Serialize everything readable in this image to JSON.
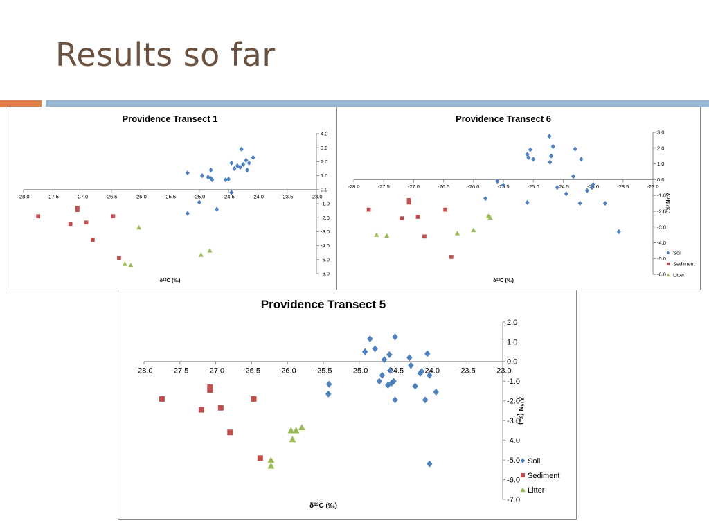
{
  "slide": {
    "title": "Results so far"
  },
  "colors": {
    "soil": "#4f81bd",
    "sediment": "#c0504d",
    "litter": "#9bbb59",
    "title": "#6b5240",
    "bar_orange": "#dd8047",
    "bar_blue": "#94b6d2"
  },
  "chart_data": [
    {
      "type": "scatter",
      "title": "Providence Transect 1",
      "xlabel": "δ13C (‰)",
      "ylabel": "",
      "xlim": [
        -28.0,
        -23.0
      ],
      "ylim": [
        -6.0,
        4.0
      ],
      "xticks": [
        "-28.0",
        "-27.5",
        "-27.0",
        "-26.5",
        "-26.0",
        "-25.5",
        "-25.0",
        "-24.5",
        "-24.0",
        "-23.5",
        "-23.0"
      ],
      "yticks": [
        "-6.0",
        "-5.0",
        "-4.0",
        "-3.0",
        "-2.0",
        "-1.0",
        "0.0",
        "1.0",
        "2.0",
        "3.0",
        "4.0"
      ],
      "legend": false,
      "series": [
        {
          "key": "soil",
          "marker": "diamond",
          "points": [
            [
              -25.2,
              1.2
            ],
            [
              -24.95,
              1.0
            ],
            [
              -24.85,
              0.9
            ],
            [
              -24.8,
              1.4
            ],
            [
              -24.78,
              0.7
            ],
            [
              -24.8,
              0.8
            ],
            [
              -24.55,
              0.7
            ],
            [
              -24.5,
              0.75
            ],
            [
              -24.45,
              1.9
            ],
            [
              -24.4,
              1.5
            ],
            [
              -24.35,
              1.7
            ],
            [
              -24.3,
              1.6
            ],
            [
              -24.28,
              2.9
            ],
            [
              -24.25,
              1.8
            ],
            [
              -24.2,
              2.1
            ],
            [
              -24.18,
              1.4
            ],
            [
              -24.15,
              1.9
            ],
            [
              -24.08,
              2.3
            ],
            [
              -25.0,
              -0.9
            ],
            [
              -24.45,
              -0.2
            ],
            [
              -24.7,
              -1.4
            ],
            [
              -25.2,
              -1.7
            ]
          ]
        },
        {
          "key": "sediment",
          "marker": "square",
          "points": [
            [
              -27.75,
              -1.9
            ],
            [
              -27.2,
              -2.45
            ],
            [
              -27.08,
              -1.3
            ],
            [
              -27.08,
              -1.45
            ],
            [
              -26.93,
              -2.35
            ],
            [
              -26.82,
              -3.6
            ],
            [
              -26.47,
              -1.9
            ],
            [
              -26.37,
              -4.9
            ]
          ]
        },
        {
          "key": "litter",
          "marker": "triangle",
          "points": [
            [
              -26.03,
              -2.7
            ],
            [
              -26.27,
              -5.3
            ],
            [
              -26.17,
              -5.4
            ],
            [
              -24.97,
              -4.65
            ],
            [
              -24.82,
              -4.35
            ]
          ]
        }
      ]
    },
    {
      "type": "scatter",
      "title": "Providence Transect 6",
      "xlabel": "δ13C (‰)",
      "ylabel": "δ15N (‰)",
      "xlim": [
        -28.0,
        -23.0
      ],
      "ylim": [
        -6.0,
        3.0
      ],
      "xticks": [
        "-28.0",
        "-27.5",
        "-27.0",
        "-26.5",
        "-26.0",
        "-25.5",
        "-25.0",
        "-24.5",
        "-24.0",
        "-23.5",
        "-23.0"
      ],
      "yticks": [
        "-6.0",
        "-5.0",
        "-4.0",
        "-3.0",
        "-2.0",
        "-1.0",
        "0.0",
        "1.0",
        "2.0",
        "3.0"
      ],
      "legend": true,
      "legend_position": "bottom-right",
      "series": [
        {
          "key": "soil",
          "name": "Soil",
          "marker": "diamond",
          "points": [
            [
              -25.8,
              -1.2
            ],
            [
              -25.6,
              -0.1
            ],
            [
              -25.5,
              -0.35
            ],
            [
              -25.1,
              1.6
            ],
            [
              -25.05,
              1.9
            ],
            [
              -25.08,
              1.4
            ],
            [
              -25.0,
              1.3
            ],
            [
              -24.73,
              2.75
            ],
            [
              -24.72,
              1.1
            ],
            [
              -24.7,
              1.5
            ],
            [
              -24.67,
              2.1
            ],
            [
              -24.6,
              -0.5
            ],
            [
              -24.45,
              -0.9
            ],
            [
              -24.33,
              0.2
            ],
            [
              -24.3,
              1.95
            ],
            [
              -24.2,
              1.3
            ],
            [
              -24.22,
              -1.5
            ],
            [
              -24.1,
              -0.7
            ],
            [
              -24.0,
              -0.3
            ],
            [
              -24.02,
              -0.5
            ],
            [
              -23.8,
              -1.5
            ],
            [
              -23.57,
              -3.3
            ],
            [
              -25.1,
              -1.45
            ]
          ]
        },
        {
          "key": "sediment",
          "name": "Sediment",
          "marker": "square",
          "points": [
            [
              -27.75,
              -1.9
            ],
            [
              -27.2,
              -2.45
            ],
            [
              -27.08,
              -1.3
            ],
            [
              -27.08,
              -1.45
            ],
            [
              -26.93,
              -2.35
            ],
            [
              -26.82,
              -3.6
            ],
            [
              -26.47,
              -1.9
            ],
            [
              -26.37,
              -4.9
            ]
          ]
        },
        {
          "key": "litter",
          "name": "Litter",
          "marker": "triangle",
          "points": [
            [
              -27.62,
              -3.5
            ],
            [
              -27.45,
              -3.55
            ],
            [
              -26.27,
              -3.4
            ],
            [
              -26.0,
              -3.2
            ],
            [
              -25.75,
              -2.3
            ],
            [
              -25.72,
              -2.4
            ]
          ]
        }
      ]
    },
    {
      "type": "scatter",
      "title": "Providence Transect 5",
      "xlabel": "δ13C (‰)",
      "ylabel": "δ15N (‰)",
      "xlim": [
        -28.0,
        -23.0
      ],
      "ylim": [
        -7.0,
        2.0
      ],
      "xticks": [
        "-28.0",
        "-27.5",
        "-27.0",
        "-26.5",
        "-26.0",
        "-25.5",
        "-25.0",
        "-24.5",
        "-24.0",
        "-23.5",
        "-23.0"
      ],
      "yticks": [
        "-7.0",
        "-6.0",
        "-5.0",
        "-4.0",
        "-3.0",
        "-2.0",
        "-1.0",
        "0.0",
        "1.0",
        "2.0"
      ],
      "legend": true,
      "legend_position": "bottom-right",
      "series": [
        {
          "key": "soil",
          "name": "Soil",
          "marker": "diamond",
          "points": [
            [
              -25.42,
              -1.15
            ],
            [
              -25.43,
              -1.65
            ],
            [
              -24.92,
              0.5
            ],
            [
              -24.85,
              1.15
            ],
            [
              -24.78,
              0.65
            ],
            [
              -24.72,
              -1.0
            ],
            [
              -24.68,
              -0.7
            ],
            [
              -24.65,
              0.1
            ],
            [
              -24.6,
              -1.2
            ],
            [
              -24.58,
              0.35
            ],
            [
              -24.57,
              -0.45
            ],
            [
              -24.55,
              -1.1
            ],
            [
              -24.52,
              -1.0
            ],
            [
              -24.5,
              1.25
            ],
            [
              -24.5,
              -1.95
            ],
            [
              -24.3,
              0.2
            ],
            [
              -24.28,
              -0.2
            ],
            [
              -24.22,
              -1.25
            ],
            [
              -24.15,
              -0.6
            ],
            [
              -24.13,
              -0.5
            ],
            [
              -24.08,
              -1.95
            ],
            [
              -24.05,
              0.4
            ],
            [
              -24.02,
              -0.7
            ],
            [
              -23.93,
              -1.55
            ],
            [
              -24.02,
              -5.2
            ]
          ]
        },
        {
          "key": "sediment",
          "name": "Sediment",
          "marker": "square",
          "points": [
            [
              -27.75,
              -1.9
            ],
            [
              -27.2,
              -2.45
            ],
            [
              -27.08,
              -1.3
            ],
            [
              -27.08,
              -1.45
            ],
            [
              -26.93,
              -2.35
            ],
            [
              -26.8,
              -3.6
            ],
            [
              -26.47,
              -1.9
            ],
            [
              -26.38,
              -4.9
            ]
          ]
        },
        {
          "key": "litter",
          "name": "Litter",
          "marker": "triangle",
          "points": [
            [
              -26.23,
              -5.0
            ],
            [
              -26.23,
              -5.3
            ],
            [
              -25.95,
              -3.5
            ],
            [
              -25.93,
              -3.95
            ],
            [
              -25.88,
              -3.5
            ],
            [
              -25.8,
              -3.35
            ]
          ]
        }
      ]
    }
  ]
}
